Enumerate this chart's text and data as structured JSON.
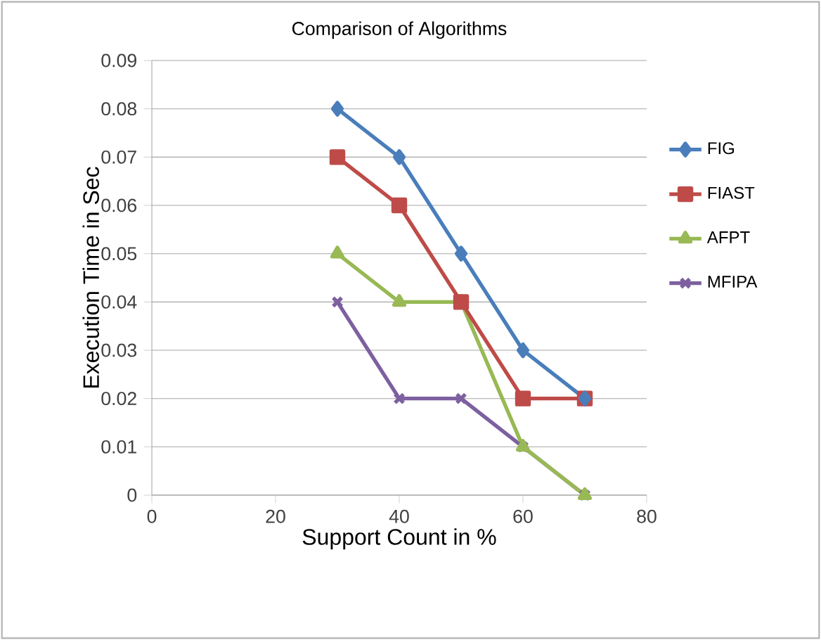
{
  "chart_data": {
    "type": "line",
    "title": "Comparison of Algorithms",
    "xlabel": "Support Count in %",
    "ylabel": "Execution Time in Sec",
    "x": [
      30,
      40,
      50,
      60,
      70
    ],
    "series": [
      {
        "name": "FIG",
        "color": "#4a7ebb",
        "marker": "diamond",
        "values": [
          0.08,
          0.07,
          0.05,
          0.03,
          0.02
        ]
      },
      {
        "name": "FIAST",
        "color": "#be4b48",
        "marker": "square",
        "values": [
          0.07,
          0.06,
          0.04,
          0.02,
          0.02
        ]
      },
      {
        "name": "AFPT",
        "color": "#98b954",
        "marker": "triangle",
        "values": [
          0.05,
          0.04,
          0.04,
          0.01,
          0
        ]
      },
      {
        "name": "MFIPA",
        "color": "#7d60a0",
        "marker": "cross",
        "values": [
          0.04,
          0.02,
          0.02,
          0.01,
          0
        ]
      }
    ],
    "xlim": [
      0,
      80
    ],
    "xticks": [
      0,
      20,
      40,
      60,
      80
    ],
    "ylim": [
      0,
      0.09
    ],
    "yticks": [
      0,
      0.01,
      0.02,
      0.03,
      0.04,
      0.05,
      0.06,
      0.07,
      0.08,
      0.09
    ],
    "grid": "y",
    "legend": "right"
  }
}
